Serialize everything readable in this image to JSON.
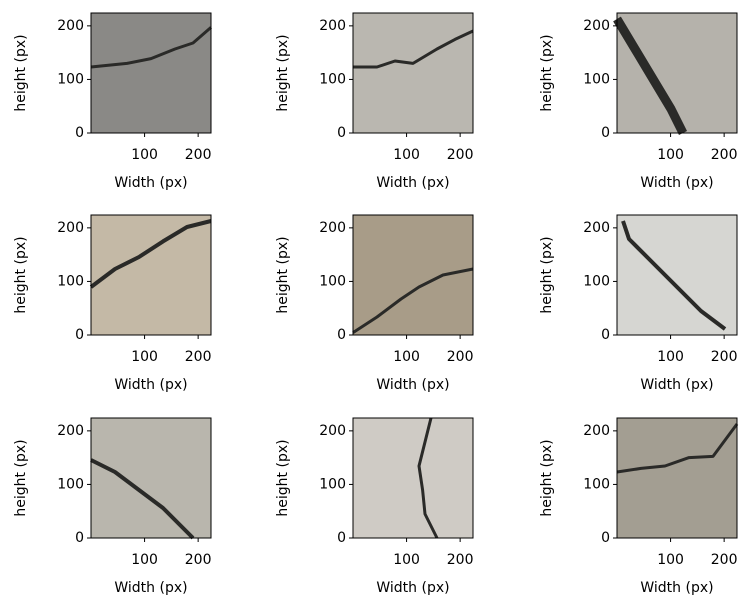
{
  "chart_data": [
    {
      "type": "image",
      "color": "#8a8986",
      "xlabel": "Width (px)",
      "ylabel": "height (px)",
      "xlim": [
        0,
        224
      ],
      "ylim": [
        0,
        224
      ],
      "xticks": [
        100,
        200
      ],
      "yticks": [
        0,
        100,
        200
      ]
    },
    {
      "type": "image",
      "color": "#bab7b0",
      "xlabel": "Width (px)",
      "ylabel": "height (px)",
      "xlim": [
        0,
        224
      ],
      "ylim": [
        0,
        224
      ],
      "xticks": [
        100,
        200
      ],
      "yticks": [
        0,
        100,
        200
      ]
    },
    {
      "type": "image",
      "color": "#b5b2ab",
      "xlabel": "Width (px)",
      "ylabel": "height (px)",
      "xlim": [
        0,
        224
      ],
      "ylim": [
        0,
        224
      ],
      "xticks": [
        100,
        200
      ],
      "yticks": [
        0,
        100,
        200
      ]
    },
    {
      "type": "image",
      "color": "#c4b9a6",
      "xlabel": "Width (px)",
      "ylabel": "height (px)",
      "xlim": [
        0,
        224
      ],
      "ylim": [
        0,
        224
      ],
      "xticks": [
        100,
        200
      ],
      "yticks": [
        0,
        100,
        200
      ]
    },
    {
      "type": "image",
      "color": "#a89c88",
      "xlabel": "Width (px)",
      "ylabel": "height (px)",
      "xlim": [
        0,
        224
      ],
      "ylim": [
        0,
        224
      ],
      "xticks": [
        100,
        200
      ],
      "yticks": [
        0,
        100,
        200
      ]
    },
    {
      "type": "image",
      "color": "#d6d6d2",
      "xlabel": "Width (px)",
      "ylabel": "height (px)",
      "xlim": [
        0,
        224
      ],
      "ylim": [
        0,
        224
      ],
      "xticks": [
        100,
        200
      ],
      "yticks": [
        0,
        100,
        200
      ]
    },
    {
      "type": "image",
      "color": "#b9b6ad",
      "xlabel": "Width (px)",
      "ylabel": "height (px)",
      "xlim": [
        0,
        224
      ],
      "ylim": [
        0,
        224
      ],
      "xticks": [
        100,
        200
      ],
      "yticks": [
        0,
        100,
        200
      ]
    },
    {
      "type": "image",
      "color": "#cfcbc5",
      "xlabel": "Width (px)",
      "ylabel": "height (px)",
      "xlim": [
        0,
        224
      ],
      "ylim": [
        0,
        224
      ],
      "xticks": [
        100,
        200
      ],
      "yticks": [
        0,
        100,
        200
      ]
    },
    {
      "type": "image",
      "color": "#a39e92",
      "xlabel": "Width (px)",
      "ylabel": "height (px)",
      "xlim": [
        0,
        224
      ],
      "ylim": [
        0,
        224
      ],
      "xticks": [
        100,
        200
      ],
      "yticks": [
        0,
        100,
        200
      ]
    }
  ]
}
